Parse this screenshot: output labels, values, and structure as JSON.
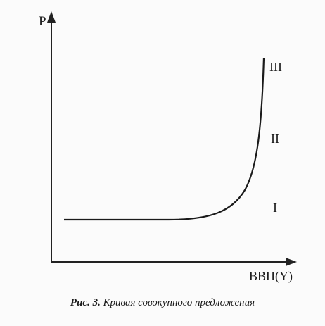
{
  "diagram": {
    "y_axis_label": "P",
    "x_axis_label": "ВВП(Y)",
    "regions": [
      {
        "label": "I"
      },
      {
        "label": "II"
      },
      {
        "label": "III"
      }
    ],
    "curve": "Aggregate supply curve: horizontal segment (I), rising segment (II), vertical segment (III)"
  },
  "caption": {
    "number": "Рис. 3.",
    "text": "Кривая совокупного предложения"
  }
}
